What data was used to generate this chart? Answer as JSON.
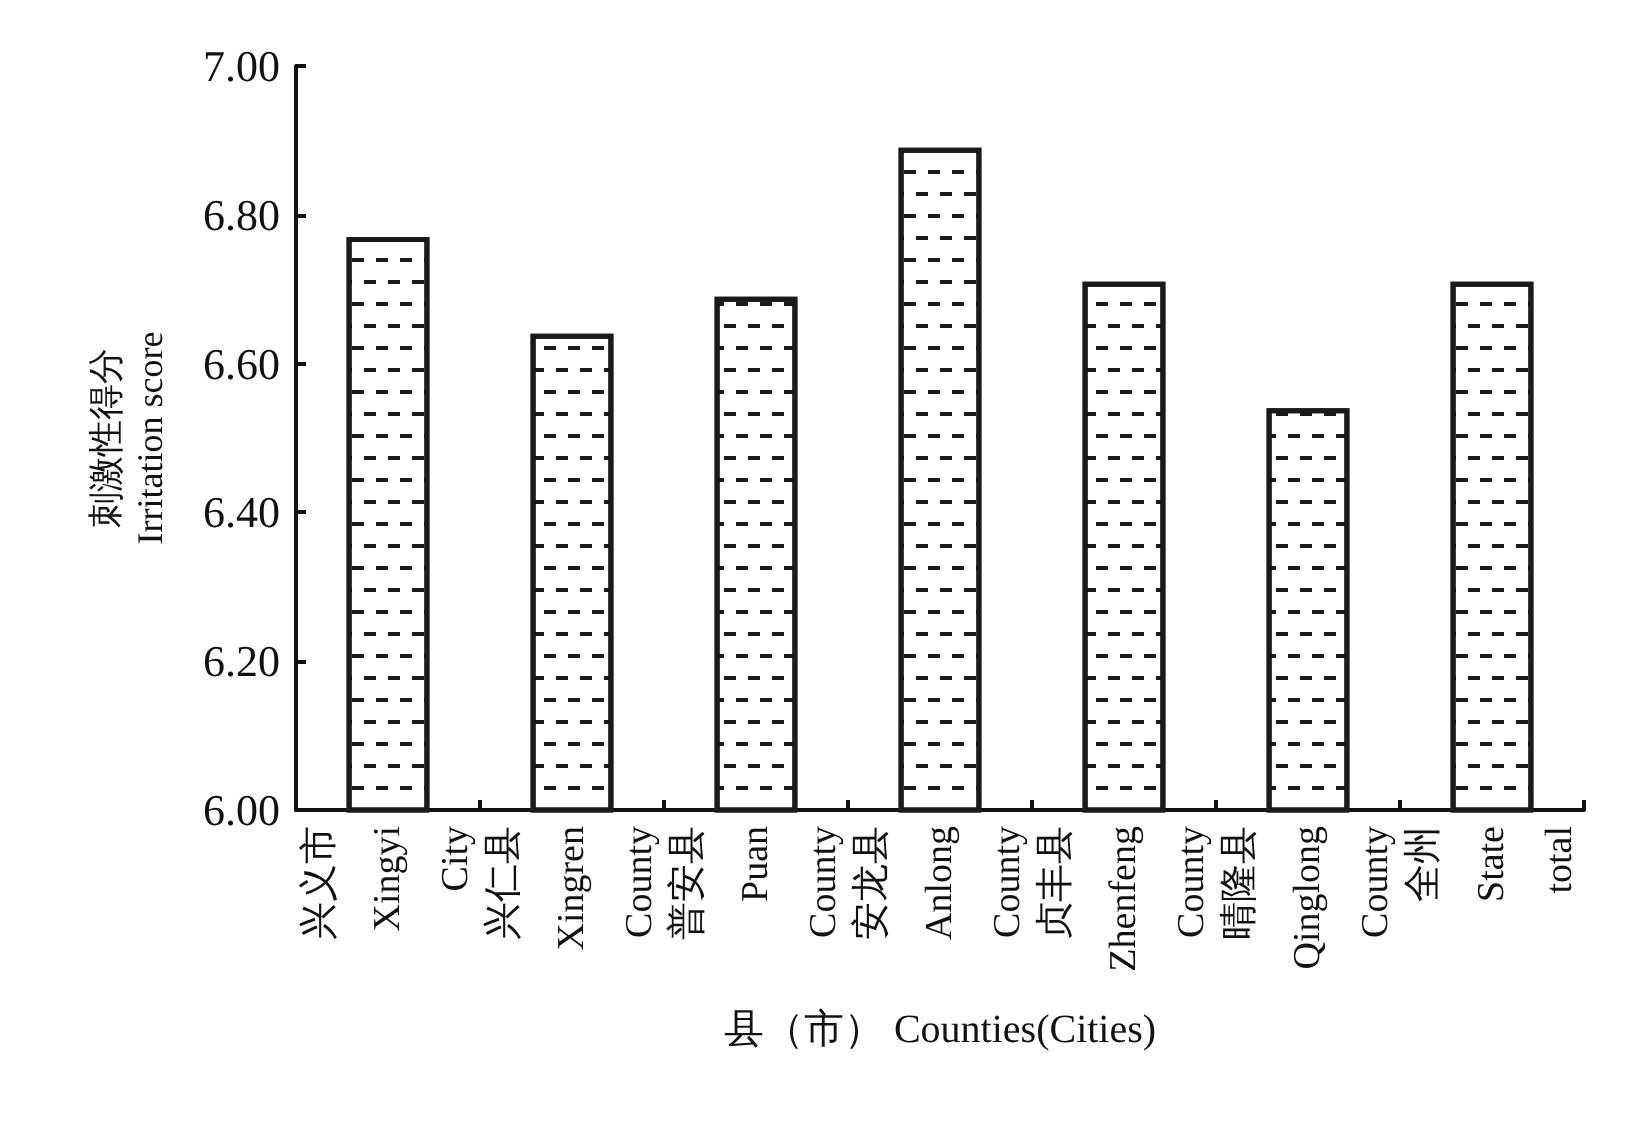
{
  "chart_data": {
    "type": "bar",
    "xlabel": "县（市） Counties(Cities)",
    "ylabel": "刺激性得分\nIrritation score",
    "categories": [
      "兴义市\nXingyi\nCity",
      "兴仁县\nXingren\nCounty",
      "普安县\nPuan\nCounty",
      "安龙县\nAnlong\nCounty",
      "贞丰县\nZhenfeng\nCounty",
      "晴隆县\nQinglong\nCounty",
      "全州\nState\ntotal"
    ],
    "values": [
      6.77,
      6.64,
      6.69,
      6.89,
      6.71,
      6.54,
      6.71
    ],
    "color": "#ffffff",
    "ylim": [
      6,
      7
    ],
    "yticks": [
      {
        "value": 6,
        "label": "6.00"
      },
      {
        "value": 6.2,
        "label": "6.20"
      },
      {
        "value": 6.4,
        "label": "6.40"
      },
      {
        "value": 6.6,
        "label": "6.60"
      },
      {
        "value": 6.8,
        "label": "6.80"
      },
      {
        "value": 7,
        "label": "7.00"
      }
    ],
    "grid": false
  }
}
